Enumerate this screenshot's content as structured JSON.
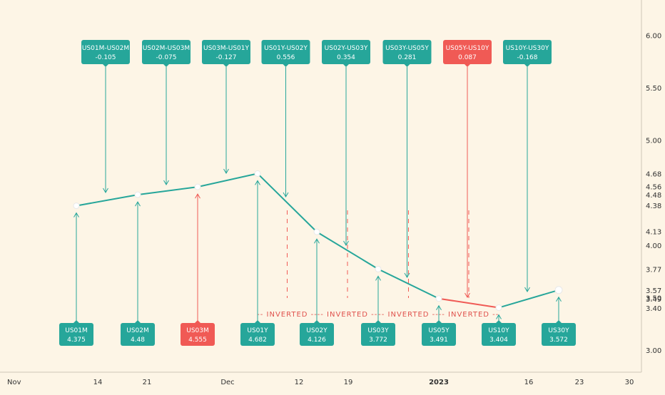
{
  "colors": {
    "background": "#fdf5e6",
    "teal": "#26a69a",
    "teal_dark": "#1f8f84",
    "red": "#f05a55",
    "axis_text": "#333333"
  },
  "chart_data": {
    "type": "line",
    "title": "",
    "xlabel": "",
    "ylabel": "",
    "ylim": [
      2.8,
      6.4
    ],
    "y_ticks": [
      "3.00",
      "3.50",
      "4.00",
      "5.00",
      "5.50",
      "6.00"
    ],
    "x_ticks": [
      {
        "label": "Nov",
        "bold": false
      },
      {
        "label": "14",
        "bold": false
      },
      {
        "label": "21",
        "bold": false
      },
      {
        "label": "Dec",
        "bold": false
      },
      {
        "label": "12",
        "bold": false
      },
      {
        "label": "19",
        "bold": false
      },
      {
        "label": "2023",
        "bold": true
      },
      {
        "label": "16",
        "bold": false
      },
      {
        "label": "23",
        "bold": false
      },
      {
        "label": "30",
        "bold": false
      }
    ],
    "price_labels": [
      "4.68",
      "4.56",
      "4.48",
      "4.38",
      "4.13",
      "3.77",
      "3.57",
      "3.49",
      "3.40"
    ],
    "series": [
      {
        "values": [
          4.375,
          4.48,
          4.555,
          4.682,
          4.126,
          3.772,
          3.491,
          3.404,
          3.572
        ],
        "categories": [
          "US01M",
          "US02M",
          "US03M",
          "US01Y",
          "US02Y",
          "US03Y",
          "US05Y",
          "US10Y",
          "US30Y"
        ]
      }
    ],
    "bottom_labels": [
      {
        "name": "US01M",
        "value": "4.375",
        "inverted": false
      },
      {
        "name": "US02M",
        "value": "4.48",
        "inverted": false
      },
      {
        "name": "US03M",
        "value": "4.555",
        "inverted": true
      },
      {
        "name": "US01Y",
        "value": "4.682",
        "inverted": false
      },
      {
        "name": "US02Y",
        "value": "4.126",
        "inverted": false
      },
      {
        "name": "US03Y",
        "value": "3.772",
        "inverted": false
      },
      {
        "name": "US05Y",
        "value": "3.491",
        "inverted": false
      },
      {
        "name": "US10Y",
        "value": "3.404",
        "inverted": false
      },
      {
        "name": "US30Y",
        "value": "3.572",
        "inverted": false
      }
    ],
    "spreads": [
      {
        "name": "US01M-US02M",
        "value": "-0.105",
        "inverted": false
      },
      {
        "name": "US02M-US03M",
        "value": "-0.075",
        "inverted": false
      },
      {
        "name": "US03M-US01Y",
        "value": "-0.127",
        "inverted": false
      },
      {
        "name": "US01Y-US02Y",
        "value": "0.556",
        "inverted": false
      },
      {
        "name": "US02Y-US03Y",
        "value": "0.354",
        "inverted": false
      },
      {
        "name": "US03Y-US05Y",
        "value": "0.281",
        "inverted": false
      },
      {
        "name": "US05Y-US10Y",
        "value": "0.087",
        "inverted": true
      },
      {
        "name": "US10Y-US30Y",
        "value": "-0.168",
        "inverted": false
      }
    ],
    "inverted_text": "-- INVERTED --",
    "grid": false
  }
}
